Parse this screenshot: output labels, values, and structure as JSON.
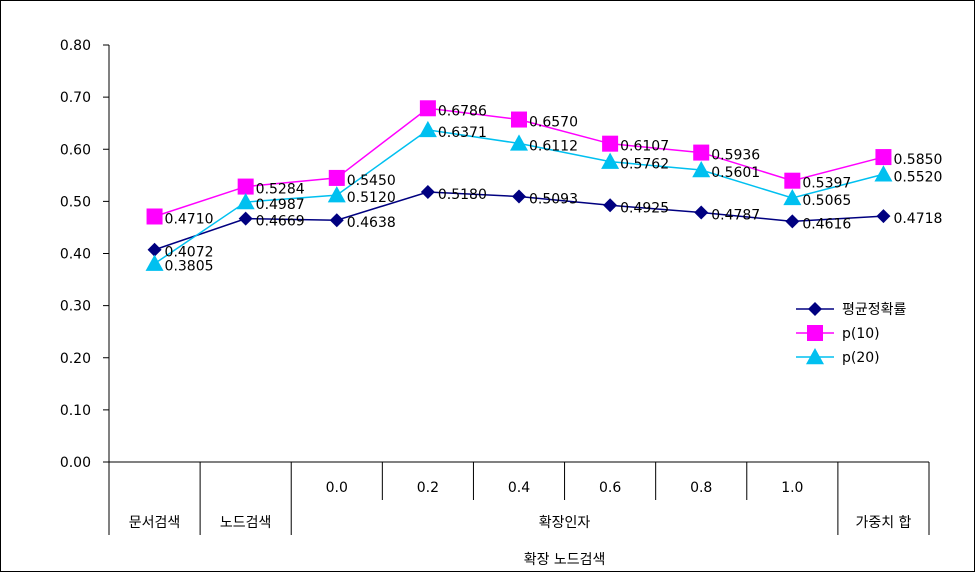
{
  "chart_data": {
    "type": "line",
    "y_axis": {
      "range": [
        0.0,
        0.8
      ],
      "ticks": [
        "0.00",
        "0.10",
        "0.20",
        "0.30",
        "0.40",
        "0.50",
        "0.60",
        "0.70",
        "0.80"
      ]
    },
    "categories": [
      "문서검색",
      "노드검색",
      "0.0",
      "0.2",
      "0.4",
      "0.6",
      "0.8",
      "1.0",
      "가중치 합"
    ],
    "category_groups": {
      "level2_label": "확장인자",
      "level3_label": "확장 노드검색"
    },
    "series": [
      {
        "name": "평균정확률",
        "color": "#000080",
        "marker": "diamond",
        "values": [
          0.4072,
          0.4669,
          0.4638,
          0.518,
          0.5093,
          0.4925,
          0.4787,
          0.4616,
          0.4718
        ],
        "labels": [
          "0.4072",
          "0.4669",
          "0.4638",
          "0.5180",
          "0.5093",
          "0.4925",
          "0.4787",
          "0.4616",
          "0.4718"
        ]
      },
      {
        "name": "p(10)",
        "color": "#FF00FF",
        "marker": "square",
        "values": [
          0.471,
          0.5284,
          0.545,
          0.6786,
          0.657,
          0.6107,
          0.5936,
          0.5397,
          0.585
        ],
        "labels": [
          "0.4710",
          "0.5284",
          "0.5450",
          "0.6786",
          "0.6570",
          "0.6107",
          "0.5936",
          "0.5397",
          "0.5850"
        ]
      },
      {
        "name": "p(20)",
        "color": "#00C0F0",
        "marker": "triangle",
        "values": [
          0.3805,
          0.4987,
          0.512,
          0.6371,
          0.6112,
          0.5762,
          0.5601,
          0.5065,
          0.552
        ],
        "labels": [
          "0.3805",
          "0.4987",
          "0.5120",
          "0.6371",
          "0.6112",
          "0.5762",
          "0.5601",
          "0.5065",
          "0.5520"
        ]
      }
    ],
    "legend_position": "right",
    "grid": false
  }
}
